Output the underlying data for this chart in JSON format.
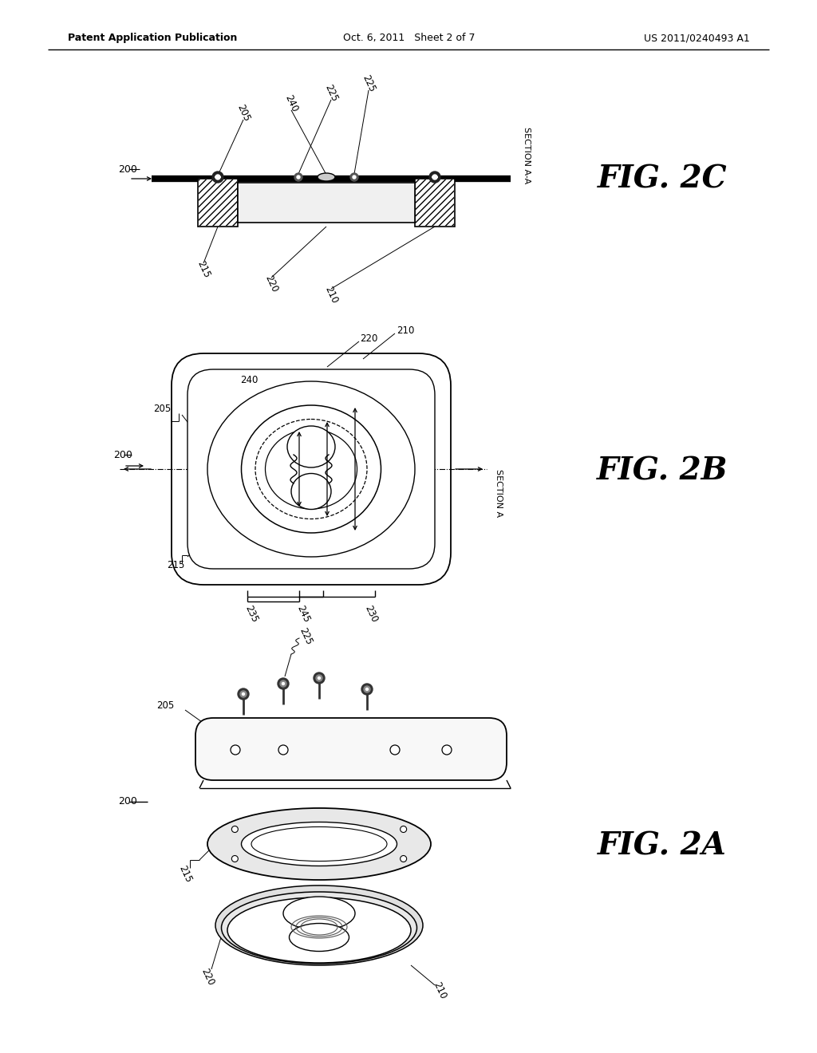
{
  "background_color": "#ffffff",
  "header_left": "Patent Application Publication",
  "header_center": "Oct. 6, 2011   Sheet 2 of 7",
  "header_right": "US 2011/0240493 A1"
}
